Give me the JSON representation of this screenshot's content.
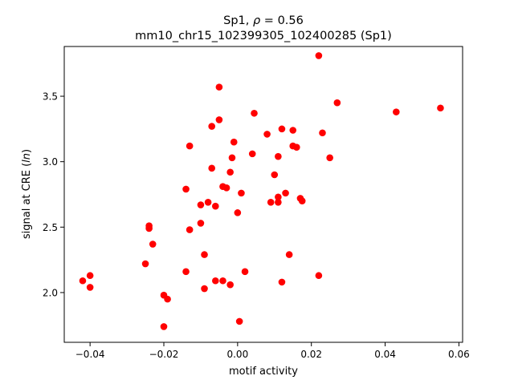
{
  "chart_data": {
    "type": "scatter",
    "title_line1_prefix": "Sp1, ",
    "title_line1_rho": "ρ",
    "title_line1_suffix": " = 0.56",
    "title_line2": "mm10_chr15_102399305_102400285 (Sp1)",
    "xlabel": "motif activity",
    "ylabel_prefix": "signal at CRE (",
    "ylabel_italic": "ln",
    "ylabel_suffix": ")",
    "xlim": [
      -0.047,
      0.061
    ],
    "ylim": [
      1.62,
      3.88
    ],
    "xticks": [
      -0.04,
      -0.02,
      0.0,
      0.02,
      0.04,
      0.06
    ],
    "xtick_labels": [
      "−0.04",
      "−0.02",
      "0.00",
      "0.02",
      "0.04",
      "0.06"
    ],
    "yticks": [
      2.0,
      2.5,
      3.0,
      3.5
    ],
    "ytick_labels": [
      "2.0",
      "2.5",
      "3.0",
      "3.5"
    ],
    "marker_color": "#ff0000",
    "grid": false,
    "points": [
      {
        "x": -0.042,
        "y": 2.09
      },
      {
        "x": -0.04,
        "y": 2.13
      },
      {
        "x": -0.04,
        "y": 2.04
      },
      {
        "x": -0.025,
        "y": 2.22
      },
      {
        "x": -0.024,
        "y": 2.49
      },
      {
        "x": -0.024,
        "y": 2.51
      },
      {
        "x": -0.023,
        "y": 2.37
      },
      {
        "x": -0.02,
        "y": 1.98
      },
      {
        "x": -0.019,
        "y": 1.95
      },
      {
        "x": -0.02,
        "y": 1.74
      },
      {
        "x": -0.014,
        "y": 2.16
      },
      {
        "x": -0.014,
        "y": 2.79
      },
      {
        "x": -0.013,
        "y": 3.12
      },
      {
        "x": -0.013,
        "y": 2.48
      },
      {
        "x": -0.01,
        "y": 2.53
      },
      {
        "x": -0.01,
        "y": 2.67
      },
      {
        "x": -0.009,
        "y": 2.29
      },
      {
        "x": -0.009,
        "y": 2.03
      },
      {
        "x": -0.008,
        "y": 2.69
      },
      {
        "x": -0.007,
        "y": 3.27
      },
      {
        "x": -0.007,
        "y": 2.95
      },
      {
        "x": -0.006,
        "y": 2.66
      },
      {
        "x": -0.006,
        "y": 2.09
      },
      {
        "x": -0.005,
        "y": 3.57
      },
      {
        "x": -0.005,
        "y": 3.32
      },
      {
        "x": -0.004,
        "y": 2.81
      },
      {
        "x": -0.003,
        "y": 2.8
      },
      {
        "x": -0.004,
        "y": 2.09
      },
      {
        "x": -0.002,
        "y": 2.92
      },
      {
        "x": -0.002,
        "y": 2.06
      },
      {
        "x": -0.0015,
        "y": 3.03
      },
      {
        "x": -0.001,
        "y": 3.15
      },
      {
        "x": 0.0,
        "y": 2.61
      },
      {
        "x": 0.0005,
        "y": 1.78
      },
      {
        "x": 0.001,
        "y": 2.76
      },
      {
        "x": 0.002,
        "y": 2.16
      },
      {
        "x": 0.004,
        "y": 3.06
      },
      {
        "x": 0.0045,
        "y": 3.37
      },
      {
        "x": 0.008,
        "y": 3.21
      },
      {
        "x": 0.009,
        "y": 2.69
      },
      {
        "x": 0.01,
        "y": 2.9
      },
      {
        "x": 0.011,
        "y": 3.04
      },
      {
        "x": 0.011,
        "y": 2.73
      },
      {
        "x": 0.011,
        "y": 2.69
      },
      {
        "x": 0.012,
        "y": 3.25
      },
      {
        "x": 0.012,
        "y": 2.08
      },
      {
        "x": 0.013,
        "y": 2.76
      },
      {
        "x": 0.014,
        "y": 2.29
      },
      {
        "x": 0.015,
        "y": 3.24
      },
      {
        "x": 0.015,
        "y": 3.12
      },
      {
        "x": 0.016,
        "y": 3.11
      },
      {
        "x": 0.017,
        "y": 2.72
      },
      {
        "x": 0.0175,
        "y": 2.7
      },
      {
        "x": 0.022,
        "y": 3.81
      },
      {
        "x": 0.022,
        "y": 2.13
      },
      {
        "x": 0.023,
        "y": 3.22
      },
      {
        "x": 0.025,
        "y": 3.03
      },
      {
        "x": 0.027,
        "y": 3.45
      },
      {
        "x": 0.043,
        "y": 3.38
      },
      {
        "x": 0.055,
        "y": 3.41
      }
    ]
  }
}
